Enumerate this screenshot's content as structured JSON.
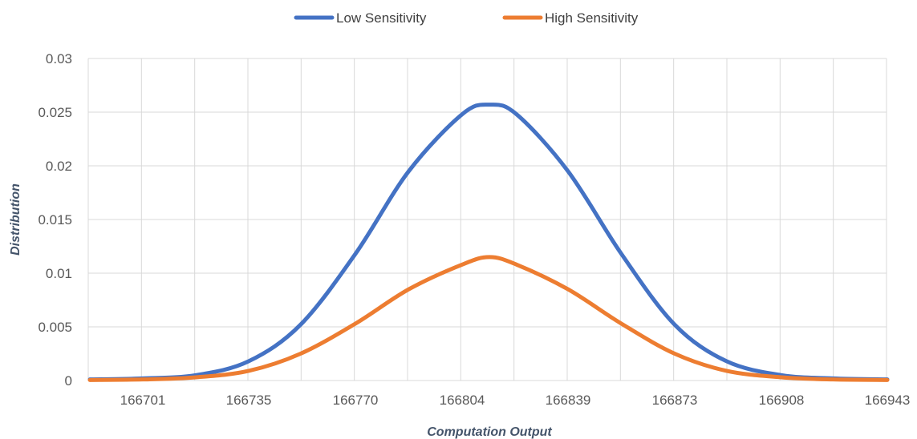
{
  "chart_data": {
    "type": "line",
    "title": "",
    "xlabel": "Computation Output",
    "ylabel": "Distribution",
    "x_ticks": [
      "166701",
      "166735",
      "166770",
      "166804",
      "166839",
      "166873",
      "166908",
      "166943"
    ],
    "y_ticks": [
      "0",
      "0.005",
      "0.01",
      "0.015",
      "0.02",
      "0.025",
      "0.03"
    ],
    "ylim": [
      0,
      0.03
    ],
    "xlim": [
      166684,
      166943
    ],
    "grid": true,
    "legend_position": "top",
    "series": [
      {
        "name": "Low Sensitivity",
        "color": "#4472C4",
        "points": [
          [
            166684,
            0.0001
          ],
          [
            166701,
            0.0002
          ],
          [
            166718,
            0.0005
          ],
          [
            166735,
            0.0018
          ],
          [
            166752,
            0.0052
          ],
          [
            166770,
            0.0118
          ],
          [
            166787,
            0.0195
          ],
          [
            166804,
            0.0248
          ],
          [
            166813,
            0.0257
          ],
          [
            166822,
            0.0248
          ],
          [
            166839,
            0.0195
          ],
          [
            166856,
            0.0118
          ],
          [
            166873,
            0.0052
          ],
          [
            166890,
            0.0018
          ],
          [
            166908,
            0.0005
          ],
          [
            166925,
            0.0002
          ],
          [
            166943,
            0.0001
          ]
        ]
      },
      {
        "name": "High Sensitivity",
        "color": "#ED7D31",
        "points": [
          [
            166684,
            5e-05
          ],
          [
            166701,
            0.0001
          ],
          [
            166718,
            0.0003
          ],
          [
            166735,
            0.0009
          ],
          [
            166752,
            0.0025
          ],
          [
            166770,
            0.0053
          ],
          [
            166787,
            0.0085
          ],
          [
            166804,
            0.0108
          ],
          [
            166813,
            0.0115
          ],
          [
            166822,
            0.0108
          ],
          [
            166839,
            0.0085
          ],
          [
            166856,
            0.0053
          ],
          [
            166873,
            0.0025
          ],
          [
            166890,
            0.0009
          ],
          [
            166908,
            0.0003
          ],
          [
            166925,
            0.0001
          ],
          [
            166943,
            5e-05
          ]
        ]
      }
    ]
  }
}
